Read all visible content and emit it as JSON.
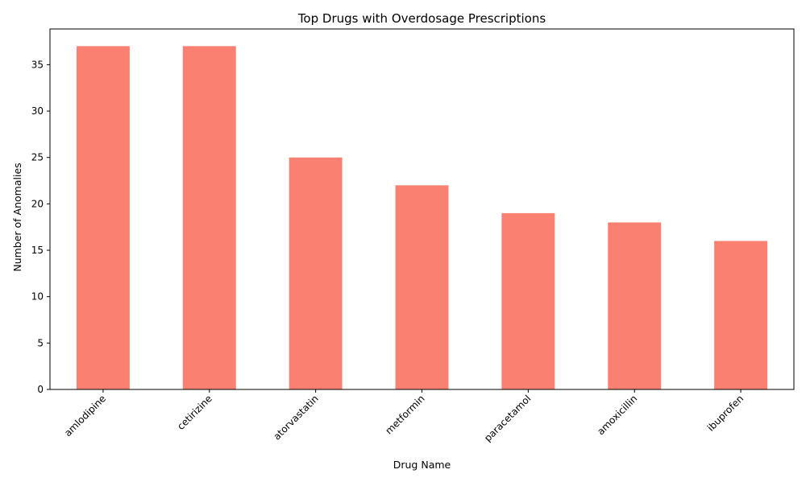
{
  "chart_data": {
    "type": "bar",
    "title": "Top Drugs with Overdosage Prescriptions",
    "xlabel": "Drug Name",
    "ylabel": "Number of Anomalies",
    "categories": [
      "amlodipine",
      "cetirizine",
      "atorvastatin",
      "metformin",
      "paracetamol",
      "amoxicillin",
      "ibuprofen"
    ],
    "values": [
      37,
      37,
      25,
      22,
      19,
      18,
      16
    ],
    "ylim": [
      0,
      38.85
    ],
    "yticks": [
      0,
      5,
      10,
      15,
      20,
      25,
      30,
      35
    ],
    "bar_color": "#fa8072",
    "grid": false,
    "legend": "none",
    "xtick_rotation": 45
  }
}
